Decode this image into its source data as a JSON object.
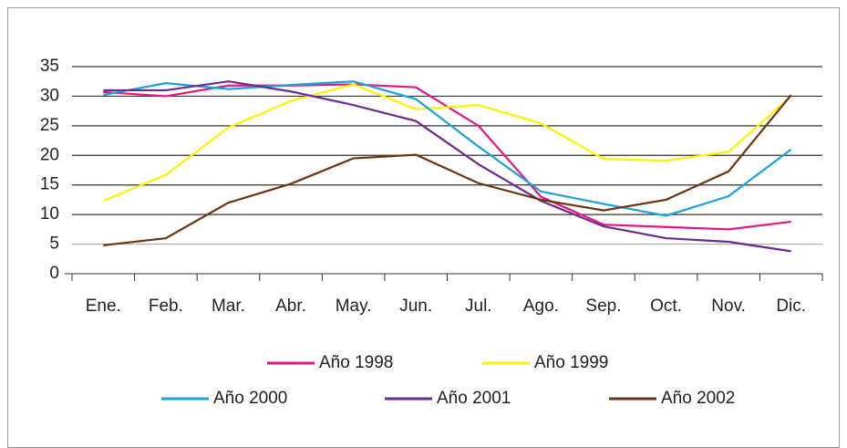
{
  "chart_data": {
    "type": "line",
    "categories": [
      "Ene.",
      "Feb.",
      "Mar.",
      "Abr.",
      "May.",
      "Jun.",
      "Jul.",
      "Ago.",
      "Sep.",
      "Oct.",
      "Nov.",
      "Dic."
    ],
    "series": [
      {
        "name": "Año 1998",
        "color": "#e6187f",
        "values": [
          30.7,
          30,
          31.8,
          31.8,
          32,
          31.5,
          25,
          13,
          8.3,
          7.9,
          7.5,
          8.8
        ]
      },
      {
        "name": "Año 1999",
        "color": "#fff200",
        "values": [
          12.3,
          16.7,
          24.7,
          29.2,
          32,
          27.8,
          28.5,
          25.4,
          19.4,
          19.1,
          20.6,
          30
        ]
      },
      {
        "name": "Año 2000",
        "color": "#1ba1db",
        "values": [
          30.2,
          32.2,
          31.2,
          31.9,
          32.5,
          29.5,
          21.5,
          13.9,
          11.8,
          9.8,
          13.1,
          21
        ]
      },
      {
        "name": "Año 2001",
        "color": "#6b2c91",
        "values": [
          31,
          31,
          32.5,
          30.8,
          28.5,
          25.8,
          18.5,
          12.3,
          8,
          6,
          5.4,
          3.8
        ]
      },
      {
        "name": "Año 2002",
        "color": "#6b3410",
        "values": [
          4.8,
          6,
          12,
          15.2,
          19.5,
          20.1,
          15.3,
          12.5,
          10.7,
          12.5,
          17.3,
          30.2
        ]
      }
    ],
    "ylim": [
      0,
      35
    ],
    "yticks": [
      0,
      5,
      10,
      15,
      20,
      25,
      30,
      35
    ],
    "grid": true,
    "legend": "bottom"
  }
}
